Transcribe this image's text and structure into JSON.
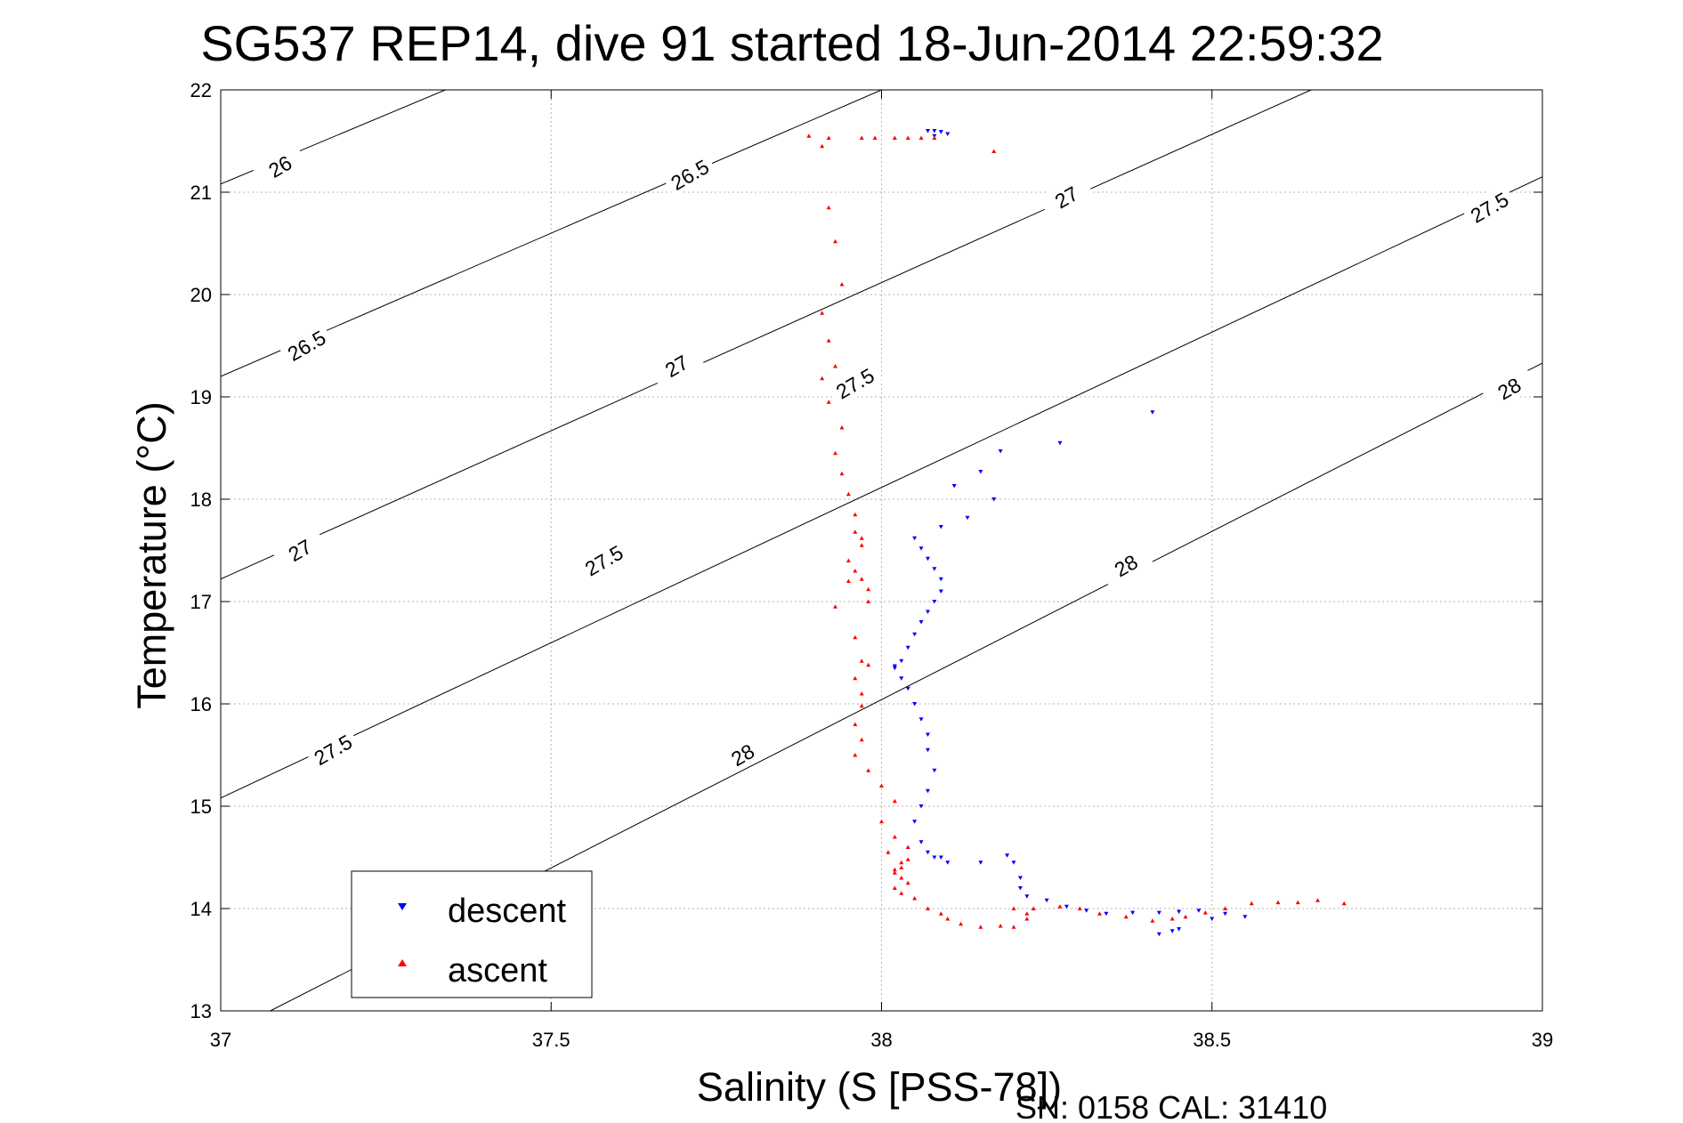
{
  "footer": "SN: 0158  CAL: 31410",
  "chart_data": {
    "type": "scatter",
    "title": "SG537 REP14, dive 91 started 18-Jun-2014 22:59:32",
    "xlabel": "Salinity (S [PSS-78])",
    "ylabel": "Temperature (°C)",
    "xlim": [
      37,
      39
    ],
    "ylim": [
      13,
      22
    ],
    "xticks": [
      37,
      37.5,
      38,
      38.5,
      39
    ],
    "yticks": [
      13,
      14,
      15,
      16,
      17,
      18,
      19,
      20,
      21,
      22
    ],
    "xtick_labels": [
      "37",
      "37.5",
      "38",
      "38.5",
      "39"
    ],
    "ytick_labels": [
      "13",
      "14",
      "15",
      "16",
      "17",
      "18",
      "19",
      "20",
      "21",
      "22"
    ],
    "grid": true,
    "legend_position": "bottom-left",
    "colors": {
      "descent": "#0000ff",
      "ascent": "#ff0000",
      "isopycnal": "#000000",
      "grid": "#b4b4b4"
    },
    "isopycnals": [
      {
        "label": "26",
        "x0": 37.0,
        "y0": 21.08,
        "x1": 37.34,
        "y1": 22.0
      },
      {
        "label": "26.5",
        "x0": 37.0,
        "y0": 19.2,
        "x1": 38.0,
        "y1": 22.0
      },
      {
        "label": "27",
        "x0": 37.0,
        "y0": 17.22,
        "x1": 38.65,
        "y1": 22.0
      },
      {
        "label": "27.5",
        "x0": 37.0,
        "y0": 15.08,
        "x1": 39.0,
        "y1": 21.15
      },
      {
        "label": "28",
        "x0": 37.075,
        "y0": 13.0,
        "x1": 39.0,
        "y1": 19.33
      }
    ],
    "contour_labels": [
      {
        "text": "26",
        "x": 37.09,
        "y": 21.25
      },
      {
        "text": "26.5",
        "x": 37.71,
        "y": 21.17
      },
      {
        "text": "26.5",
        "x": 37.13,
        "y": 19.5
      },
      {
        "text": "27",
        "x": 38.28,
        "y": 20.95
      },
      {
        "text": "27",
        "x": 37.69,
        "y": 19.3
      },
      {
        "text": "27",
        "x": 37.12,
        "y": 17.5
      },
      {
        "text": "27.5",
        "x": 38.92,
        "y": 20.85
      },
      {
        "text": "27.5",
        "x": 37.96,
        "y": 19.13
      },
      {
        "text": "27.5",
        "x": 37.58,
        "y": 17.4
      },
      {
        "text": "27.5",
        "x": 37.17,
        "y": 15.55
      },
      {
        "text": "28",
        "x": 38.95,
        "y": 19.08
      },
      {
        "text": "28",
        "x": 38.37,
        "y": 17.35
      },
      {
        "text": "28",
        "x": 37.79,
        "y": 15.5
      }
    ],
    "series": [
      {
        "name": "descent",
        "marker": "triangle-down",
        "x": [
          38.07,
          38.08,
          38.09,
          38.1,
          38.08,
          38.41,
          38.27,
          38.18,
          38.15,
          38.11,
          38.17,
          38.13,
          38.09,
          38.05,
          38.06,
          38.07,
          38.08,
          38.09,
          38.09,
          38.08,
          38.07,
          38.06,
          38.05,
          38.04,
          38.03,
          38.02,
          38.02,
          38.03,
          38.04,
          38.05,
          38.06,
          38.07,
          38.07,
          38.08,
          38.07,
          38.06,
          38.05,
          38.06,
          38.07,
          38.08,
          38.09,
          38.1,
          38.15,
          38.19,
          38.2,
          38.21,
          38.21,
          38.22,
          38.25,
          38.28,
          38.31,
          38.34,
          38.38,
          38.42,
          38.45,
          38.48,
          38.52,
          38.55,
          38.44,
          38.42,
          38.45,
          38.5
        ],
        "y": [
          21.6,
          21.6,
          21.59,
          21.57,
          21.55,
          18.85,
          18.55,
          18.47,
          18.27,
          18.13,
          18.0,
          17.82,
          17.73,
          17.62,
          17.52,
          17.42,
          17.32,
          17.22,
          17.1,
          17.0,
          16.9,
          16.8,
          16.68,
          16.55,
          16.42,
          16.37,
          16.35,
          16.25,
          16.15,
          16.0,
          15.85,
          15.7,
          15.55,
          15.35,
          15.15,
          15.0,
          14.85,
          14.65,
          14.55,
          14.5,
          14.5,
          14.45,
          14.45,
          14.52,
          14.45,
          14.3,
          14.2,
          14.12,
          14.08,
          14.02,
          13.98,
          13.95,
          13.96,
          13.96,
          13.97,
          13.98,
          13.95,
          13.92,
          13.78,
          13.75,
          13.8,
          13.9
        ]
      },
      {
        "name": "ascent",
        "marker": "triangle-up",
        "x": [
          37.89,
          37.91,
          37.92,
          37.97,
          37.99,
          38.02,
          38.04,
          38.06,
          38.08,
          38.17,
          37.92,
          37.93,
          37.94,
          37.91,
          37.92,
          37.93,
          37.91,
          37.92,
          37.94,
          37.93,
          37.94,
          37.95,
          37.96,
          37.96,
          37.97,
          37.97,
          37.95,
          37.96,
          37.97,
          37.98,
          37.98,
          37.95,
          37.93,
          37.96,
          37.97,
          37.98,
          37.96,
          37.97,
          37.97,
          37.96,
          37.97,
          37.96,
          37.98,
          38.0,
          38.02,
          38.0,
          38.02,
          38.04,
          38.01,
          38.03,
          38.02,
          38.03,
          38.04,
          38.02,
          38.03,
          38.04,
          38.02,
          38.03,
          38.05,
          38.07,
          38.09,
          38.1,
          38.12,
          38.15,
          38.18,
          38.2,
          38.22,
          38.22,
          38.2,
          38.23,
          38.27,
          38.3,
          38.33,
          38.37,
          38.41,
          38.44,
          38.46,
          38.49,
          38.52,
          38.56,
          38.6,
          38.63,
          38.66,
          38.7
        ],
        "y": [
          21.55,
          21.45,
          21.53,
          21.53,
          21.53,
          21.53,
          21.53,
          21.53,
          21.53,
          21.4,
          20.85,
          20.52,
          20.1,
          19.82,
          19.55,
          19.3,
          19.18,
          18.95,
          18.7,
          18.45,
          18.25,
          18.05,
          17.85,
          17.68,
          17.62,
          17.55,
          17.4,
          17.3,
          17.22,
          17.12,
          17.0,
          17.2,
          16.95,
          16.65,
          16.42,
          16.38,
          16.25,
          16.1,
          15.98,
          15.8,
          15.65,
          15.5,
          15.35,
          15.2,
          15.05,
          14.85,
          14.7,
          14.6,
          14.55,
          14.45,
          14.38,
          14.4,
          14.48,
          14.35,
          14.3,
          14.25,
          14.2,
          14.15,
          14.1,
          14.0,
          13.95,
          13.9,
          13.85,
          13.82,
          13.83,
          13.82,
          13.9,
          13.95,
          14.0,
          14.0,
          14.02,
          14.0,
          13.95,
          13.92,
          13.88,
          13.9,
          13.92,
          13.96,
          14.0,
          14.05,
          14.06,
          14.06,
          14.08,
          14.05
        ]
      }
    ]
  }
}
